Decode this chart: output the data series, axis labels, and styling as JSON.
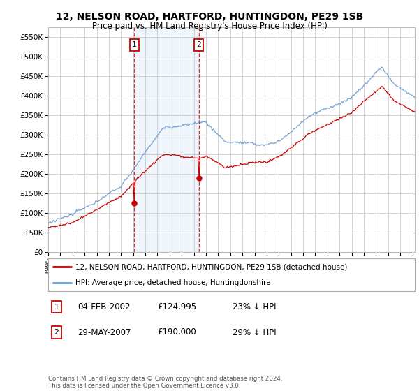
{
  "title": "12, NELSON ROAD, HARTFORD, HUNTINGDON, PE29 1SB",
  "subtitle": "Price paid vs. HM Land Registry's House Price Index (HPI)",
  "legend_line1": "12, NELSON ROAD, HARTFORD, HUNTINGDON, PE29 1SB (detached house)",
  "legend_line2": "HPI: Average price, detached house, Huntingdonshire",
  "annotation1_date": "04-FEB-2002",
  "annotation1_price": "£124,995",
  "annotation1_hpi": "23% ↓ HPI",
  "annotation1_year": 2002.09,
  "annotation1_value": 124995,
  "annotation2_date": "29-MAY-2007",
  "annotation2_price": "£190,000",
  "annotation2_hpi": "29% ↓ HPI",
  "annotation2_year": 2007.42,
  "annotation2_value": 190000,
  "footer": "Contains HM Land Registry data © Crown copyright and database right 2024.\nThis data is licensed under the Open Government Licence v3.0.",
  "red_color": "#cc0000",
  "blue_color": "#6699cc",
  "shade_color": "#ddeeff",
  "background_color": "#ffffff",
  "grid_color": "#cccccc",
  "ylim": [
    0,
    575000
  ],
  "xlim_start": 1995.0,
  "xlim_end": 2025.2
}
